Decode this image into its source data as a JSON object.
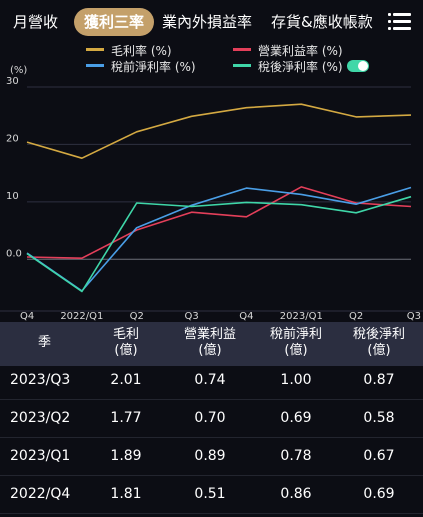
{
  "tabs": [
    {
      "label": "月營收",
      "active": false
    },
    {
      "label": "獲利三率",
      "active": true
    },
    {
      "label": "業內外損益率",
      "active": false
    },
    {
      "label": "存貨&應收帳款",
      "active": false
    }
  ],
  "menu_icon": "menu-icon",
  "legend": [
    {
      "label": "毛利率 (%)",
      "color": "#d4a942"
    },
    {
      "label": "營業利益率 (%)",
      "color": "#e43f5a"
    },
    {
      "label": "稅前淨利率 (%)",
      "color": "#4a9ee6"
    },
    {
      "label": "稅後淨利率 (%)",
      "color": "#3fd6a8"
    }
  ],
  "chart_data": {
    "type": "line",
    "ylabel": "(%)",
    "ylim": [
      -9,
      30
    ],
    "yticks": [
      30,
      20,
      10,
      0.0
    ],
    "ytick_labels": [
      "30",
      "20",
      "10",
      "0.0"
    ],
    "categories": [
      "2021/Q4",
      "2022/Q1",
      "2022/Q2",
      "2022/Q3",
      "2022/Q4",
      "2023/Q1",
      "2023/Q2",
      "2023/Q3"
    ],
    "xtick_labels": [
      "Q4",
      "2022/Q1",
      "Q2",
      "Q3",
      "Q4",
      "2023/Q1",
      "Q2",
      "Q3"
    ],
    "grid": "horizontal",
    "series": [
      {
        "name": "毛利率 (%)",
        "color": "#d4a942",
        "values": [
          20.4,
          17.6,
          22.2,
          24.9,
          26.4,
          27.0,
          24.8,
          25.1
        ]
      },
      {
        "name": "營業利益率 (%)",
        "color": "#e43f5a",
        "values": [
          0.4,
          0.2,
          5.1,
          8.2,
          7.4,
          12.6,
          9.8,
          9.2
        ]
      },
      {
        "name": "稅前淨利率 (%)",
        "color": "#4a9ee6",
        "values": [
          1.1,
          -5.5,
          5.5,
          9.4,
          12.4,
          11.3,
          9.6,
          12.5
        ]
      },
      {
        "name": "稅後淨利率 (%)",
        "color": "#3fd6a8",
        "values": [
          1.0,
          -5.6,
          9.8,
          9.2,
          9.9,
          9.5,
          8.1,
          10.9
        ]
      }
    ]
  },
  "table": {
    "headers": [
      {
        "line1": "季",
        "line2": ""
      },
      {
        "line1": "毛利",
        "line2": "(億)"
      },
      {
        "line1": "營業利益",
        "line2": "(億)"
      },
      {
        "line1": "稅前淨利",
        "line2": "(億)"
      },
      {
        "line1": "稅後淨利",
        "line2": "(億)"
      }
    ],
    "rows": [
      {
        "quarter": "2023/Q3",
        "gross": "2.01",
        "operating": "0.74",
        "pretax": "1.00",
        "net": "0.87"
      },
      {
        "quarter": "2023/Q2",
        "gross": "1.77",
        "operating": "0.70",
        "pretax": "0.69",
        "net": "0.58"
      },
      {
        "quarter": "2023/Q1",
        "gross": "1.89",
        "operating": "0.89",
        "pretax": "0.78",
        "net": "0.67"
      },
      {
        "quarter": "2022/Q4",
        "gross": "1.81",
        "operating": "0.51",
        "pretax": "0.86",
        "net": "0.69"
      }
    ]
  }
}
